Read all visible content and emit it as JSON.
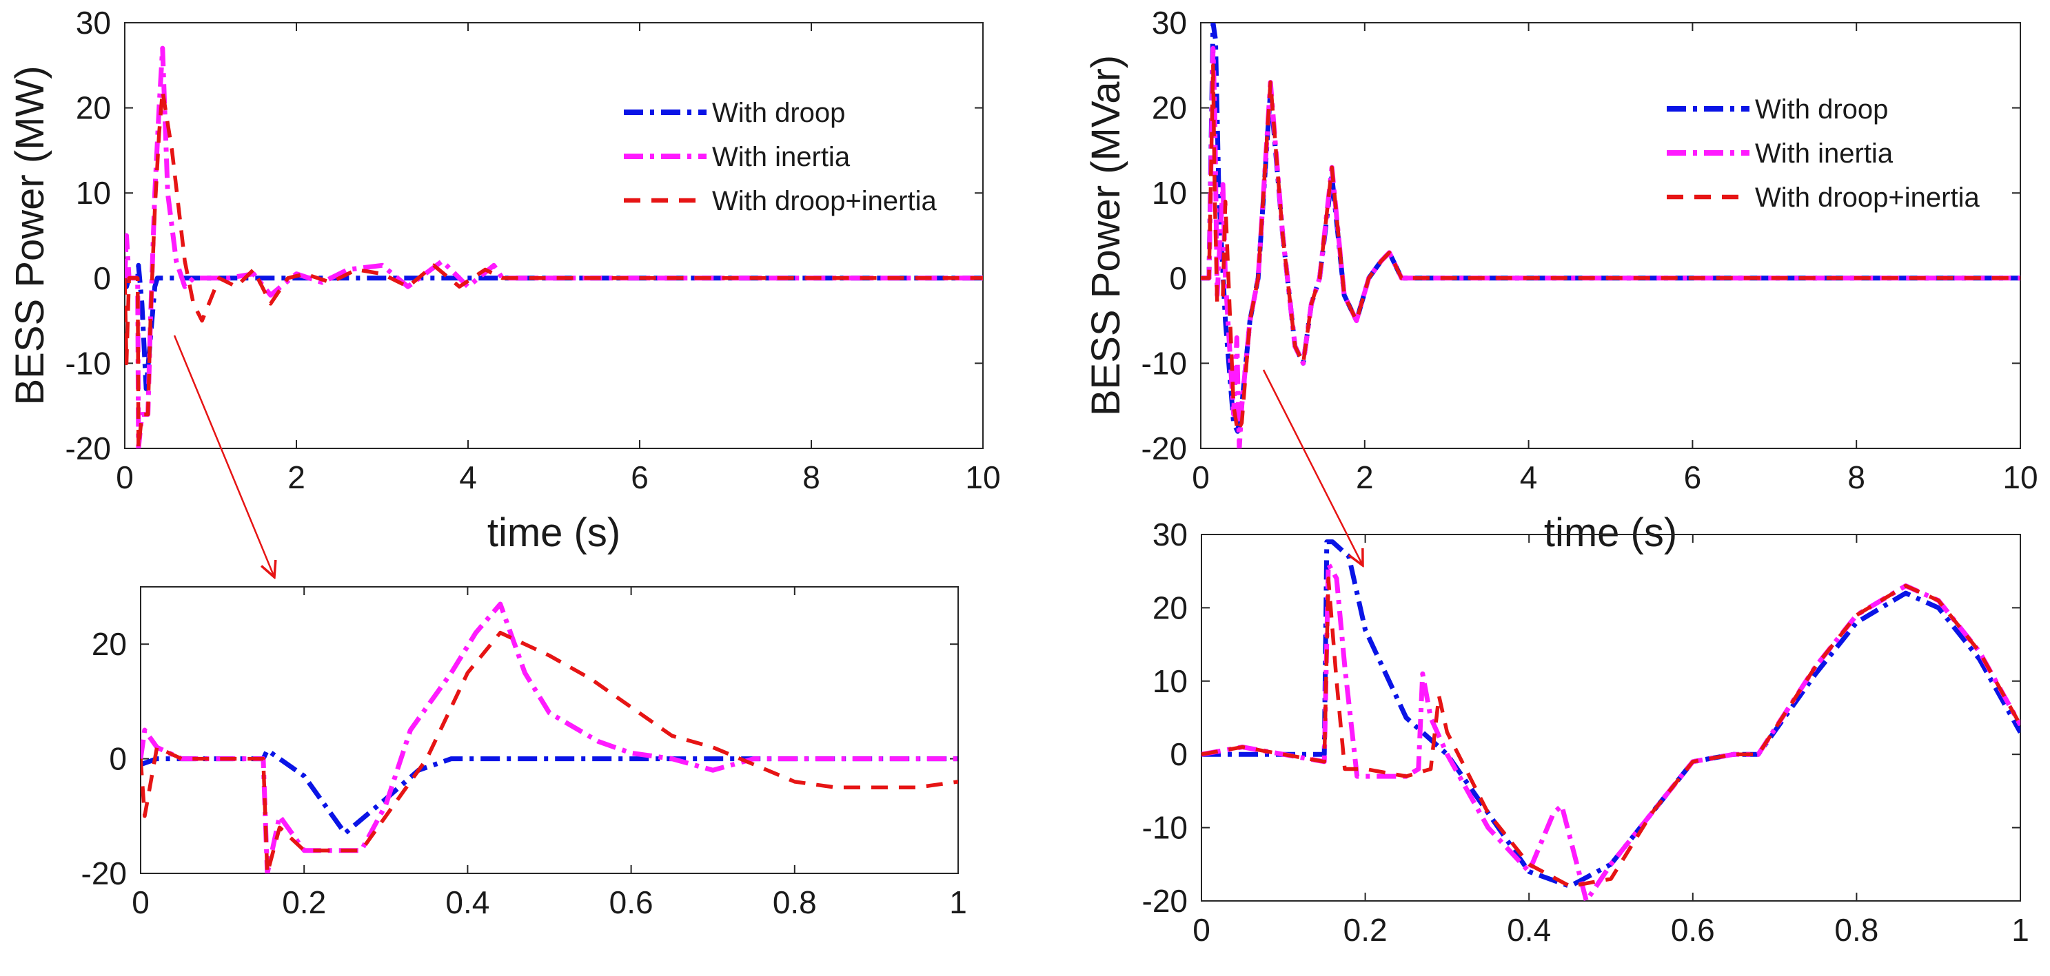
{
  "colors": {
    "droop": "#0a14e6",
    "inertia": "#ff1aff",
    "droop_inertia": "#e61414",
    "annotation": "#e61414",
    "axis": "#262626"
  },
  "chart_data": [
    {
      "id": "active-main",
      "type": "line",
      "xlabel": "time (s)",
      "ylabel": "BESS Power (MW)",
      "xlim": [
        0,
        10
      ],
      "ylim": [
        -20,
        30
      ],
      "xticks": [
        "0",
        "2",
        "4",
        "6",
        "8",
        "10"
      ],
      "yticks": [
        "-20",
        "-10",
        "0",
        "10",
        "20",
        "30"
      ],
      "legend_position": "top-right",
      "series": [
        {
          "name": "With droop",
          "x": [
            0,
            0.02,
            0.05,
            0.08,
            0.1,
            0.15,
            0.16,
            0.2,
            0.25,
            0.3,
            0.35,
            0.38,
            0.5,
            1,
            2,
            4,
            6,
            8,
            10
          ],
          "y": [
            0,
            -1,
            0,
            0,
            0,
            0,
            1.5,
            -3,
            -13,
            -7,
            -1,
            0,
            0,
            0,
            0,
            0,
            0,
            0,
            0
          ]
        },
        {
          "name": "With inertia",
          "x": [
            0,
            0.02,
            0.05,
            0.1,
            0.15,
            0.16,
            0.2,
            0.27,
            0.3,
            0.35,
            0.4,
            0.44,
            0.5,
            0.6,
            0.7,
            0.8,
            1,
            1.2,
            1.5,
            1.7,
            2,
            2.3,
            2.6,
            3,
            3.3,
            3.7,
            4,
            4.3,
            4.4,
            6,
            8,
            10
          ],
          "y": [
            0,
            5,
            0,
            0,
            0,
            -20,
            -16,
            -16,
            -5,
            10,
            20,
            27,
            10,
            2,
            -1,
            0,
            0,
            0,
            0.5,
            -2,
            0.5,
            -0.5,
            1,
            1.5,
            -1,
            2,
            -1,
            1.5,
            0,
            0,
            0,
            0
          ]
        },
        {
          "name": "With droop+inertia",
          "x": [
            0,
            0.02,
            0.05,
            0.1,
            0.15,
            0.16,
            0.2,
            0.27,
            0.3,
            0.35,
            0.4,
            0.44,
            0.55,
            0.7,
            0.8,
            0.9,
            1.1,
            1.3,
            1.5,
            1.7,
            1.9,
            2.1,
            2.4,
            2.7,
            3,
            3.3,
            3.6,
            3.9,
            4.2,
            4.4,
            6,
            8,
            10
          ],
          "y": [
            0,
            -10,
            0,
            0,
            0,
            -20,
            -16,
            -16,
            -5,
            8,
            17,
            22,
            15,
            2,
            -3,
            -5,
            0,
            -1,
            1,
            -3,
            0,
            0.5,
            -0.5,
            1,
            0.5,
            -1,
            1.5,
            -1,
            1,
            0,
            0,
            0,
            0
          ]
        }
      ]
    },
    {
      "id": "active-zoom",
      "type": "line",
      "xlabel": "",
      "ylabel": "",
      "xlim": [
        0,
        1
      ],
      "ylim": [
        -20,
        30
      ],
      "xticks": [
        "0",
        "0.2",
        "0.4",
        "0.6",
        "0.8",
        "1"
      ],
      "yticks": [
        "-20",
        "0",
        "20"
      ],
      "series": [
        {
          "name": "With droop",
          "x": [
            0,
            0.02,
            0.05,
            0.1,
            0.15,
            0.155,
            0.2,
            0.25,
            0.3,
            0.34,
            0.38,
            0.5,
            0.7,
            0.85,
            1
          ],
          "y": [
            -1,
            0,
            0,
            0,
            0,
            1.5,
            -3,
            -13,
            -7,
            -2,
            0,
            0,
            0,
            0,
            0
          ]
        },
        {
          "name": "With inertia",
          "x": [
            0,
            0.005,
            0.02,
            0.05,
            0.1,
            0.15,
            0.155,
            0.17,
            0.2,
            0.27,
            0.3,
            0.33,
            0.38,
            0.41,
            0.44,
            0.47,
            0.5,
            0.56,
            0.6,
            0.65,
            0.7,
            0.75,
            0.85,
            1
          ],
          "y": [
            0,
            5,
            2,
            0,
            0,
            0,
            -20,
            -10,
            -16,
            -16,
            -8,
            5,
            15,
            22,
            27,
            15,
            8,
            3,
            1,
            0,
            -2,
            0,
            0,
            0
          ]
        },
        {
          "name": "With droop+inertia",
          "x": [
            0,
            0.005,
            0.02,
            0.05,
            0.1,
            0.15,
            0.155,
            0.17,
            0.2,
            0.27,
            0.3,
            0.35,
            0.4,
            0.44,
            0.5,
            0.55,
            0.6,
            0.65,
            0.7,
            0.75,
            0.8,
            0.85,
            0.9,
            0.95,
            1
          ],
          "y": [
            0,
            -10,
            2,
            0,
            0,
            0,
            -20,
            -12,
            -16,
            -16,
            -10,
            0,
            15,
            22,
            18,
            14,
            9,
            4,
            2,
            -1,
            -4,
            -5,
            -5,
            -5,
            -4
          ]
        }
      ]
    },
    {
      "id": "reactive-main",
      "type": "line",
      "xlabel": "time (s)",
      "ylabel": "BESS Power (MVar)",
      "xlim": [
        0,
        10
      ],
      "ylim": [
        -20,
        30
      ],
      "xticks": [
        "0",
        "2",
        "4",
        "6",
        "8",
        "10"
      ],
      "yticks": [
        "-20",
        "-10",
        "0",
        "10",
        "20",
        "30"
      ],
      "legend_position": "top-right",
      "series": [
        {
          "name": "With droop",
          "x": [
            0,
            0.1,
            0.15,
            0.18,
            0.22,
            0.3,
            0.4,
            0.45,
            0.5,
            0.6,
            0.7,
            0.85,
            1,
            1.15,
            1.25,
            1.35,
            1.45,
            1.6,
            1.75,
            1.9,
            2.05,
            2.2,
            2.3,
            2.45,
            2.6,
            4,
            6,
            8,
            10
          ],
          "y": [
            0,
            0,
            30,
            28,
            10,
            -5,
            -17,
            -18,
            -15,
            -5,
            0,
            22,
            5,
            -8,
            -10,
            -3,
            0,
            12,
            -2,
            -5,
            0,
            2,
            3,
            0,
            0,
            0,
            0,
            0,
            0
          ]
        },
        {
          "name": "With inertia",
          "x": [
            0,
            0.1,
            0.15,
            0.17,
            0.2,
            0.27,
            0.3,
            0.4,
            0.44,
            0.47,
            0.5,
            0.6,
            0.7,
            0.85,
            1,
            1.15,
            1.25,
            1.35,
            1.45,
            1.6,
            1.75,
            1.9,
            2.05,
            2.2,
            2.3,
            2.45,
            2.6,
            4,
            6,
            8,
            10
          ],
          "y": [
            0,
            0,
            27,
            20,
            -2,
            11,
            0,
            -16,
            -7,
            -20,
            -15,
            -5,
            0,
            23,
            5,
            -8,
            -10,
            -3,
            0,
            13,
            -2,
            -5,
            0,
            2,
            3,
            0,
            0,
            0,
            0,
            0,
            0
          ]
        },
        {
          "name": "With droop+inertia",
          "x": [
            0,
            0.1,
            0.15,
            0.17,
            0.2,
            0.27,
            0.3,
            0.4,
            0.45,
            0.5,
            0.6,
            0.7,
            0.85,
            1,
            1.15,
            1.25,
            1.35,
            1.45,
            1.6,
            1.75,
            1.9,
            2.05,
            2.2,
            2.3,
            2.45,
            2.6,
            4,
            6,
            8,
            10
          ],
          "y": [
            0,
            0,
            25,
            10,
            -3,
            -2,
            9,
            -15,
            -18,
            -17,
            -5,
            0,
            23,
            5,
            -8,
            -10,
            -3,
            0,
            13,
            -2,
            -5,
            0,
            2,
            3,
            0,
            0,
            0,
            0,
            0,
            0
          ]
        }
      ]
    },
    {
      "id": "reactive-zoom",
      "type": "line",
      "xlabel": "",
      "ylabel": "",
      "xlim": [
        0,
        1
      ],
      "ylim": [
        -20,
        30
      ],
      "xticks": [
        "0",
        "0.2",
        "0.4",
        "0.6",
        "0.8",
        "1"
      ],
      "yticks": [
        "-20",
        "-10",
        "0",
        "10",
        "20",
        "30"
      ],
      "series": [
        {
          "name": "With droop",
          "x": [
            0,
            0.05,
            0.1,
            0.15,
            0.153,
            0.16,
            0.18,
            0.2,
            0.25,
            0.3,
            0.35,
            0.4,
            0.45,
            0.5,
            0.55,
            0.6,
            0.65,
            0.68,
            0.75,
            0.8,
            0.86,
            0.9,
            0.95,
            1
          ],
          "y": [
            0,
            0,
            0,
            0,
            29,
            29,
            27,
            17,
            5,
            0,
            -8,
            -16,
            -18,
            -15,
            -8,
            -1,
            0,
            0,
            11,
            18,
            22,
            20,
            13,
            3
          ]
        },
        {
          "name": "With inertia",
          "x": [
            0,
            0.05,
            0.1,
            0.15,
            0.155,
            0.165,
            0.175,
            0.19,
            0.2,
            0.25,
            0.265,
            0.27,
            0.28,
            0.3,
            0.35,
            0.4,
            0.43,
            0.44,
            0.47,
            0.5,
            0.55,
            0.6,
            0.65,
            0.68,
            0.75,
            0.8,
            0.86,
            0.9,
            0.95,
            1
          ],
          "y": [
            0,
            1,
            0,
            -1,
            26,
            24,
            12,
            -3,
            -3,
            -3,
            -2,
            11,
            5,
            0,
            -10,
            -16,
            -8,
            -7,
            -20,
            -15,
            -8,
            -1,
            0,
            0,
            12,
            19,
            23,
            21,
            14,
            4
          ]
        },
        {
          "name": "With droop+inertia",
          "x": [
            0,
            0.05,
            0.1,
            0.15,
            0.155,
            0.165,
            0.175,
            0.185,
            0.2,
            0.25,
            0.28,
            0.29,
            0.3,
            0.35,
            0.4,
            0.45,
            0.5,
            0.55,
            0.6,
            0.65,
            0.68,
            0.75,
            0.8,
            0.86,
            0.9,
            0.95,
            1
          ],
          "y": [
            0,
            1,
            0,
            -1,
            24,
            10,
            -2,
            -2,
            -2,
            -3,
            -2,
            8,
            3,
            -8,
            -15,
            -18,
            -17,
            -8,
            -1,
            0,
            0,
            12,
            19,
            23,
            21,
            14,
            4
          ]
        }
      ]
    }
  ]
}
